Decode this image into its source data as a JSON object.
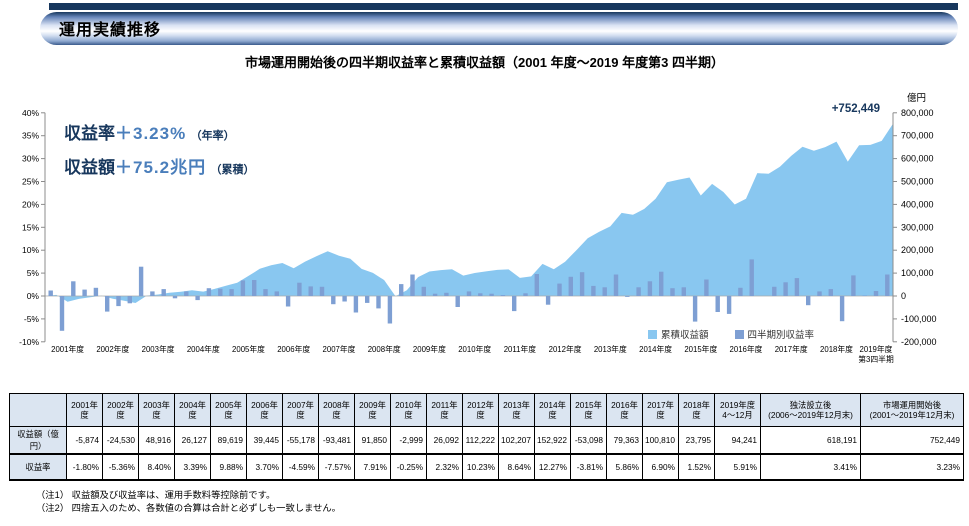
{
  "page": {
    "title_bar": "運用実績推移",
    "chart_title": "市場運用開始後の四半期収益率と累積収益額（2001 年度～2019 年度第3 四半期）",
    "notes": [
      "（注1） 収益額及び収益率は、運用手数料等控除前です。",
      "（注2） 四捨五入のため、各数値の合算は合計と必ずしも一致しません。"
    ]
  },
  "annotations": {
    "rate_label": "収益率",
    "rate_value": "＋3.23%",
    "rate_suffix": "（年率）",
    "amount_label": "収益額",
    "amount_value": "＋75.2兆円",
    "amount_suffix": "（累積）",
    "cumulative_end_label": "+752,449"
  },
  "colors": {
    "area_light_blue": "#89C7F0",
    "bar_blue": "#7E9FD3",
    "navy_text": "#17375D",
    "value_blue_text": "#4A7EBB",
    "table_header_bg": "#DBE5F1",
    "axis_gray": "#8C8C8C"
  },
  "chart_data": {
    "type": "combo: area = cumulative return amount (right axis, 億円), bar = quarterly return rate (left axis, %)",
    "title": "市場運用開始後の四半期収益率と累積収益額（2001 年度～2019 年度第3 四半期）",
    "right_axis_unit": "億円",
    "ylim_left_pct": [
      -10,
      40
    ],
    "ylim_right_okuyen": [
      -200000,
      800000
    ],
    "left_axis_ticks_pct": [
      40,
      35,
      30,
      25,
      20,
      15,
      10,
      5,
      0,
      -5,
      -10
    ],
    "right_axis_ticks_okuyen": [
      800000,
      700000,
      600000,
      500000,
      400000,
      300000,
      200000,
      100000,
      0,
      -100000,
      -200000
    ],
    "x_year_labels": [
      "2001年度",
      "2002年度",
      "2003年度",
      "2004年度",
      "2005年度",
      "2006年度",
      "2007年度",
      "2008年度",
      "2009年度",
      "2010年度",
      "2011年度",
      "2012年度",
      "2013年度",
      "2014年度",
      "2015年度",
      "2016年度",
      "2017年度",
      "2018年度"
    ],
    "x_final_label_lines": [
      "2019年度",
      "第3四半期"
    ],
    "legend": [
      {
        "label": "累積収益額",
        "series": "area"
      },
      {
        "label": "四半期別収益率",
        "series": "bar"
      }
    ],
    "grid": "off",
    "legend_position": "bottom-right inside plot",
    "quarters_note": "75 quarters: FY2001Q1–FY2019Q3; values estimated from graph, year-ends match table",
    "quarterly_return_pct": [
      1.2,
      -7.6,
      3.2,
      1.4,
      1.8,
      -3.4,
      -2.2,
      -1.6,
      6.4,
      1.0,
      1.5,
      -0.5,
      1.0,
      -0.9,
      1.7,
      1.6,
      1.5,
      3.4,
      3.5,
      1.5,
      1.0,
      -2.3,
      2.9,
      2.1,
      2.0,
      -1.8,
      -1.2,
      -3.6,
      -1.5,
      -2.7,
      -6.0,
      2.6,
      4.7,
      2.0,
      0.5,
      0.7,
      -2.4,
      1.0,
      0.6,
      0.5,
      0.2,
      -3.3,
      0.6,
      4.8,
      -1.9,
      2.7,
      4.2,
      5.2,
      2.2,
      1.9,
      4.7,
      -0.2,
      1.9,
      3.2,
      5.3,
      1.7,
      1.9,
      -5.6,
      3.6,
      -3.5,
      -3.9,
      1.8,
      8.0,
      0.0,
      2.0,
      3.0,
      3.9,
      -2.0,
      1.0,
      1.5,
      -5.5,
      4.5,
      0.1,
      1.1,
      4.7
    ],
    "quarterly_cumulative_amount": [
      4680,
      -24960,
      -12480,
      -5874,
      1326,
      -12274,
      -21074,
      -30404,
      1596,
      6596,
      14096,
      18512,
      25512,
      19212,
      31112,
      44639,
      57839,
      87759,
      118559,
      134258,
      144258,
      121258,
      150258,
      173703,
      195703,
      175903,
      162703,
      118525,
      100975,
      69385,
      -815,
      25044,
      82384,
      106784,
      112884,
      116894,
      89054,
      100654,
      107614,
      113895,
      116155,
      78865,
      85645,
      139987,
      117187,
      149587,
      199987,
      252209,
      279929,
      303869,
      363089,
      354416,
      380446,
      424286,
      496896,
      507338,
      517338,
      438938,
      489338,
      454240,
      399640,
      424840,
      536840,
      533603,
      564803,
      611603,
      651603,
      634413,
      650313,
      674163,
      586713,
      658208,
      659808,
      677408,
      752449
    ],
    "annual_return_pct_labels": [
      "-1.80%",
      "-5.36%",
      "8.40%",
      "3.39%",
      "9.88%",
      "3.70%",
      "-4.59%",
      "-7.57%",
      "7.91%",
      "-0.25%",
      "2.32%",
      "10.23%",
      "8.64%",
      "12.27%",
      "-3.81%",
      "5.86%",
      "6.90%",
      "1.52%",
      "5.91%"
    ],
    "final_cumulative_label": "+752,449"
  },
  "table": {
    "col_headers": [
      "",
      "2001年度",
      "2002年度",
      "2003年度",
      "2004年度",
      "2005年度",
      "2006年度",
      "2007年度",
      "2008年度",
      "2009年度",
      "2010年度",
      "2011年度",
      "2012年度",
      "2013年度",
      "2014年度",
      "2015年度",
      "2016年度",
      "2017年度",
      "2018年度",
      "2019年度\n4～12月",
      "独法設立後\n(2006～2019年12月末)",
      "市場運用開始後\n(2001～2019年12月末)"
    ],
    "rows": [
      {
        "label": "収益額（億円）",
        "values": [
          "-5,874",
          "-24,530",
          "48,916",
          "26,127",
          "89,619",
          "39,445",
          "-55,178",
          "-93,481",
          "91,850",
          "-2,999",
          "26,092",
          "112,222",
          "102,207",
          "152,922",
          "-53,098",
          "79,363",
          "100,810",
          "23,795",
          "94,241",
          "618,191",
          "752,449"
        ]
      },
      {
        "label": "収益率",
        "values": [
          "-1.80%",
          "-5.36%",
          "8.40%",
          "3.39%",
          "9.88%",
          "3.70%",
          "-4.59%",
          "-7.57%",
          "7.91%",
          "-0.25%",
          "2.32%",
          "10.23%",
          "8.64%",
          "12.27%",
          "-3.81%",
          "5.86%",
          "6.90%",
          "1.52%",
          "5.91%",
          "3.41%",
          "3.23%"
        ]
      }
    ]
  }
}
